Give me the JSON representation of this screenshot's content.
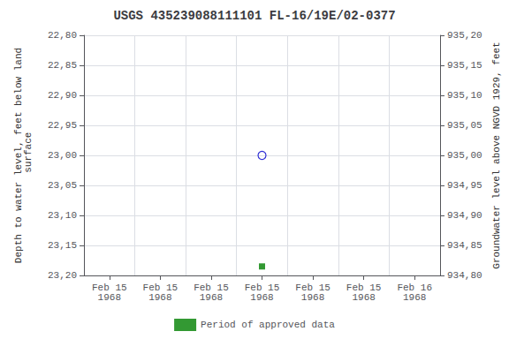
{
  "chart_data": {
    "type": "scatter",
    "title": "USGS 435239088111101 FL-16/19E/02-0377",
    "categories": [
      "Feb 15\n1968",
      "Feb 15\n1968",
      "Feb 15\n1968",
      "Feb 15\n1968",
      "Feb 15\n1968",
      "Feb 15\n1968",
      "Feb 16\n1968"
    ],
    "y_label": "Depth to water level, feet below land\n surface",
    "y2_label": "Groundwater level above NGVD 1929, feet",
    "ylim": [
      23.2,
      22.8
    ],
    "yticks": [
      {
        "value": 22.8,
        "label": "22,80"
      },
      {
        "value": 22.85,
        "label": "22,85"
      },
      {
        "value": 22.9,
        "label": "22,90"
      },
      {
        "value": 22.95,
        "label": "22,95"
      },
      {
        "value": 23.0,
        "label": "23,00"
      },
      {
        "value": 23.05,
        "label": "23,05"
      },
      {
        "value": 23.1,
        "label": "23,10"
      },
      {
        "value": 23.15,
        "label": "23,15"
      },
      {
        "value": 23.2,
        "label": "23,20"
      }
    ],
    "y2lim": [
      934.8,
      935.2
    ],
    "y2ticks": [
      {
        "value": 934.8,
        "label": "934,80"
      },
      {
        "value": 934.85,
        "label": "934,85"
      },
      {
        "value": 934.9,
        "label": "934,90"
      },
      {
        "value": 934.95,
        "label": "934,95"
      },
      {
        "value": 935.0,
        "label": "935,00"
      },
      {
        "value": 935.05,
        "label": "935,05"
      },
      {
        "value": 935.1,
        "label": "935,10"
      },
      {
        "value": 935.15,
        "label": "935,15"
      },
      {
        "value": 935.2,
        "label": "935,20"
      }
    ],
    "grid": true,
    "legend": "bottom",
    "series": [
      {
        "color": "#0000cc",
        "marker": "open_circle",
        "values": [
          null,
          null,
          null,
          23.0,
          null,
          null,
          null
        ]
      },
      {
        "name": "Period of approved data",
        "color": "#008000",
        "marker": "square",
        "values": [
          null,
          null,
          null,
          23.185,
          null,
          null,
          null
        ]
      }
    ]
  }
}
